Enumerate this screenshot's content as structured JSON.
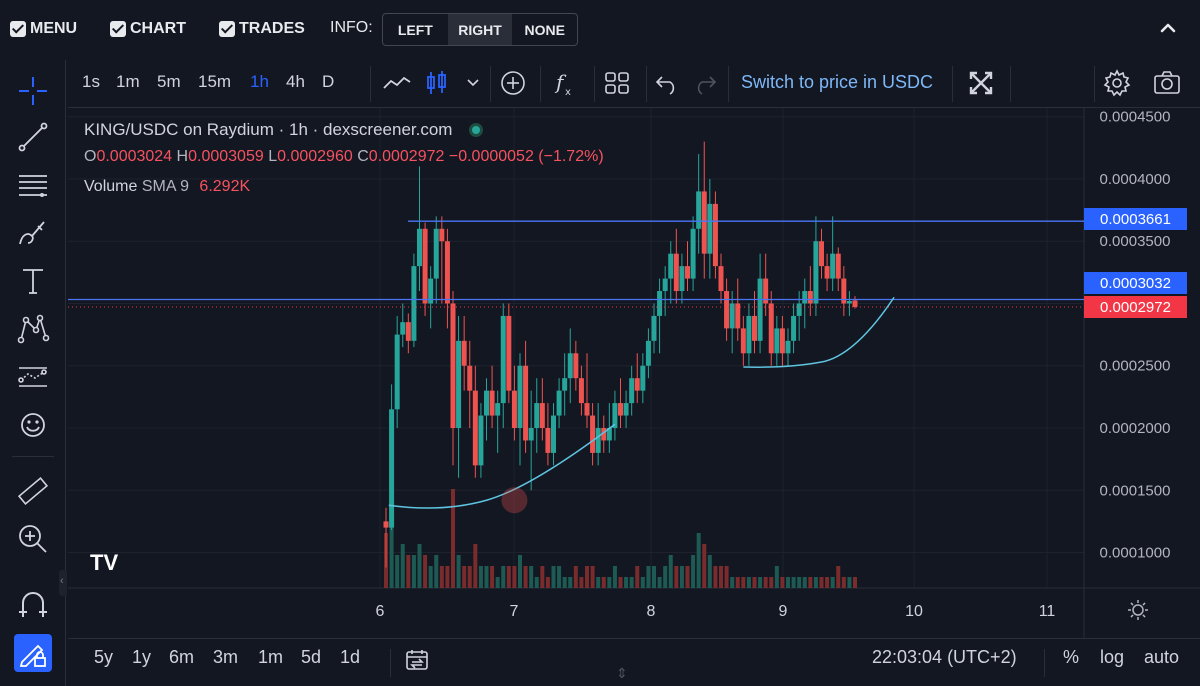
{
  "topbar": {
    "menu_label": "MENU",
    "chart_label": "CHART",
    "trades_label": "TRADES",
    "info_label": "INFO:",
    "info_options": [
      "LEFT",
      "RIGHT",
      "NONE"
    ],
    "info_selected": "RIGHT"
  },
  "chart_toolbar": {
    "timeframes": [
      "1s",
      "1m",
      "5m",
      "15m",
      "1h",
      "4h",
      "D"
    ],
    "active_timeframe": "1h",
    "switch_label": "Switch to price in USDC"
  },
  "legend": {
    "title": "KING/USDC on Raydium · 1h · dexscreener.com",
    "o_label": "O",
    "o": "0.0003024",
    "h_label": "H",
    "h": "0.0003059",
    "l_label": "L",
    "l": "0.0002960",
    "c_label": "C",
    "c": "0.0002972",
    "change": "−0.0000052 (−1.72%)",
    "volume_label": "Volume",
    "sma_label": "SMA 9",
    "volume_value": "6.292K"
  },
  "price_labels": {
    "line_top": "0.0003661",
    "line_mid": "0.0003032",
    "last": "0.0002972"
  },
  "bottombar": {
    "ranges": [
      "5y",
      "1y",
      "6m",
      "3m",
      "1m",
      "5d",
      "1d"
    ],
    "clock": "22:03:04 (UTC+2)",
    "percent": "%",
    "log": "log",
    "auto": "auto"
  },
  "colors": {
    "up": "#26a69a",
    "down": "#ef5350",
    "accent": "#2962ff",
    "line": "#4a76f5",
    "curve": "#5fc4e0"
  },
  "chart_data": {
    "type": "candlestick",
    "title": "KING/USDC on Raydium · 1h · dexscreener.com",
    "y_ticks": [
      0.0001,
      0.00015,
      0.0002,
      0.00025,
      0.0003,
      0.00035,
      0.0004,
      0.00045
    ],
    "y_tick_labels": [
      "0.0001000",
      "0.0001500",
      "0.0002000",
      "0.0002500",
      "0.0003000",
      "0.0003500",
      "0.0004000",
      "0.0004500"
    ],
    "x_tick_labels": [
      "6",
      "7",
      "8",
      "9",
      "10",
      "11"
    ],
    "ylim": [
      7.15e-05,
      0.000457
    ],
    "horizontal_lines": [
      0.0003661,
      0.0003032
    ],
    "last_price": 0.0002972,
    "candles_hourly_estimated": [
      [
        0.000125,
        0.000136,
        8.8e-05,
        0.00012
      ],
      [
        0.00012,
        0.000235,
        0.000118,
        0.000215
      ],
      [
        0.000215,
        0.00029,
        0.0002,
        0.000275
      ],
      [
        0.000275,
        0.0003,
        0.000265,
        0.000285
      ],
      [
        0.000285,
        0.000292,
        0.00026,
        0.00027
      ],
      [
        0.00027,
        0.00034,
        0.000265,
        0.00033
      ],
      [
        0.00033,
        0.00041,
        0.00031,
        0.00036
      ],
      [
        0.00036,
        0.000365,
        0.00029,
        0.0003
      ],
      [
        0.0003,
        0.00033,
        0.00028,
        0.00032
      ],
      [
        0.00032,
        0.00037,
        0.0003,
        0.00036
      ],
      [
        0.00036,
        0.00037,
        0.0003,
        0.00035
      ],
      [
        0.00035,
        0.00036,
        0.00028,
        0.0003
      ],
      [
        0.0003,
        0.00031,
        0.00017,
        0.0002
      ],
      [
        0.0002,
        0.00029,
        0.00016,
        0.00027
      ],
      [
        0.00027,
        0.00029,
        0.00023,
        0.00025
      ],
      [
        0.00025,
        0.00027,
        0.0002,
        0.00023
      ],
      [
        0.00023,
        0.00025,
        0.00016,
        0.00017
      ],
      [
        0.00017,
        0.00022,
        0.00016,
        0.00021
      ],
      [
        0.00021,
        0.00024,
        0.00019,
        0.00023
      ],
      [
        0.00023,
        0.00025,
        0.0002,
        0.00021
      ],
      [
        0.00021,
        0.00023,
        0.00018,
        0.00022
      ],
      [
        0.00022,
        0.0003,
        0.0002,
        0.00029
      ],
      [
        0.00029,
        0.0003,
        0.00022,
        0.00023
      ],
      [
        0.00023,
        0.00025,
        0.00019,
        0.0002
      ],
      [
        0.0002,
        0.00026,
        0.00017,
        0.00025
      ],
      [
        0.00025,
        0.00027,
        0.00018,
        0.00019
      ],
      [
        0.00019,
        0.00023,
        0.00015,
        0.0002
      ],
      [
        0.0002,
        0.00024,
        0.00018,
        0.00022
      ],
      [
        0.00022,
        0.00024,
        0.00019,
        0.0002
      ],
      [
        0.0002,
        0.00022,
        0.00017,
        0.00018
      ],
      [
        0.00018,
        0.00022,
        0.00017,
        0.00021
      ],
      [
        0.00021,
        0.00024,
        0.0002,
        0.00023
      ],
      [
        0.00023,
        0.00026,
        0.00021,
        0.00024
      ],
      [
        0.00024,
        0.00028,
        0.00022,
        0.00026
      ],
      [
        0.00026,
        0.00027,
        0.00023,
        0.00024
      ],
      [
        0.00024,
        0.00025,
        0.00021,
        0.00022
      ],
      [
        0.00022,
        0.00026,
        0.0002,
        0.00021
      ],
      [
        0.00021,
        0.00022,
        0.00017,
        0.00018
      ],
      [
        0.00018,
        0.00022,
        0.00017,
        0.0002
      ],
      [
        0.0002,
        0.00021,
        0.00018,
        0.00019
      ],
      [
        0.00019,
        0.00022,
        0.00018,
        0.0002
      ],
      [
        0.0002,
        0.00023,
        0.00019,
        0.00022
      ],
      [
        0.00022,
        0.00024,
        0.0002,
        0.00021
      ],
      [
        0.00021,
        0.00023,
        0.0002,
        0.00022
      ],
      [
        0.00022,
        0.00025,
        0.00021,
        0.00024
      ],
      [
        0.00024,
        0.00026,
        0.00022,
        0.00023
      ],
      [
        0.00023,
        0.00026,
        0.00022,
        0.00025
      ],
      [
        0.00025,
        0.00028,
        0.00024,
        0.00027
      ],
      [
        0.00027,
        0.0003,
        0.00026,
        0.00029
      ],
      [
        0.00029,
        0.00032,
        0.00026,
        0.00031
      ],
      [
        0.00031,
        0.00033,
        0.00029,
        0.00032
      ],
      [
        0.00032,
        0.00035,
        0.0003,
        0.00034
      ],
      [
        0.00034,
        0.00036,
        0.0003,
        0.00031
      ],
      [
        0.00031,
        0.00034,
        0.0003,
        0.00033
      ],
      [
        0.00033,
        0.00035,
        0.00031,
        0.00032
      ],
      [
        0.00032,
        0.00037,
        0.00031,
        0.00036
      ],
      [
        0.00036,
        0.00042,
        0.00034,
        0.00039
      ],
      [
        0.00039,
        0.00043,
        0.00032,
        0.00034
      ],
      [
        0.00034,
        0.0004,
        0.00032,
        0.00038
      ],
      [
        0.00038,
        0.00039,
        0.00032,
        0.00033
      ],
      [
        0.00033,
        0.00034,
        0.0003,
        0.00031
      ],
      [
        0.00031,
        0.00032,
        0.00027,
        0.00028
      ],
      [
        0.00028,
        0.00031,
        0.00026,
        0.0003
      ],
      [
        0.0003,
        0.00032,
        0.00027,
        0.00028
      ],
      [
        0.00028,
        0.00029,
        0.00025,
        0.00026
      ],
      [
        0.00026,
        0.0003,
        0.00025,
        0.00029
      ],
      [
        0.00029,
        0.00031,
        0.00026,
        0.00027
      ],
      [
        0.00027,
        0.00034,
        0.00026,
        0.00032
      ],
      [
        0.00032,
        0.00034,
        0.00029,
        0.0003
      ],
      [
        0.0003,
        0.00031,
        0.00025,
        0.00026
      ],
      [
        0.00026,
        0.00029,
        0.00025,
        0.00028
      ],
      [
        0.00028,
        0.00029,
        0.00025,
        0.00026
      ],
      [
        0.00026,
        0.00028,
        0.00025,
        0.00027
      ],
      [
        0.00027,
        0.0003,
        0.00026,
        0.00029
      ],
      [
        0.00029,
        0.00031,
        0.00027,
        0.0003
      ],
      [
        0.0003,
        0.00032,
        0.00028,
        0.00031
      ],
      [
        0.00031,
        0.00033,
        0.00029,
        0.0003
      ],
      [
        0.0003,
        0.00037,
        0.00029,
        0.00035
      ],
      [
        0.00035,
        0.00036,
        0.00032,
        0.00033
      ],
      [
        0.00033,
        0.00034,
        0.00031,
        0.00032
      ],
      [
        0.00032,
        0.00037,
        0.00031,
        0.00034
      ],
      [
        0.00034,
        0.000345,
        0.00031,
        0.00032
      ],
      [
        0.00032,
        0.00033,
        0.00029,
        0.0003
      ],
      [
        0.0003,
        0.00031,
        0.00029,
        0.000302
      ],
      [
        0.0003024,
        0.0003059,
        0.000296,
        0.0002972
      ]
    ],
    "volume_relative": [
      0.5,
      0.9,
      0.3,
      0.4,
      0.3,
      0.3,
      0.4,
      0.3,
      0.2,
      0.3,
      0.2,
      0.2,
      0.9,
      0.3,
      0.2,
      0.2,
      0.4,
      0.2,
      0.2,
      0.2,
      0.1,
      0.2,
      0.2,
      0.2,
      0.3,
      0.2,
      0.2,
      0.1,
      0.2,
      0.1,
      0.2,
      0.2,
      0.1,
      0.1,
      0.2,
      0.1,
      0.2,
      0.2,
      0.1,
      0.1,
      0.1,
      0.2,
      0.1,
      0.1,
      0.1,
      0.2,
      0.1,
      0.2,
      0.2,
      0.1,
      0.2,
      0.3,
      0.2,
      0.2,
      0.2,
      0.3,
      0.5,
      0.4,
      0.3,
      0.2,
      0.2,
      0.2,
      0.1,
      0.1,
      0.1,
      0.1,
      0.1,
      0.1,
      0.1,
      0.1,
      0.2,
      0.1,
      0.1,
      0.1,
      0.1,
      0.1,
      0.1,
      0.1,
      0.1,
      0.1,
      0.1,
      0.2,
      0.1,
      0.1,
      0.1
    ]
  }
}
